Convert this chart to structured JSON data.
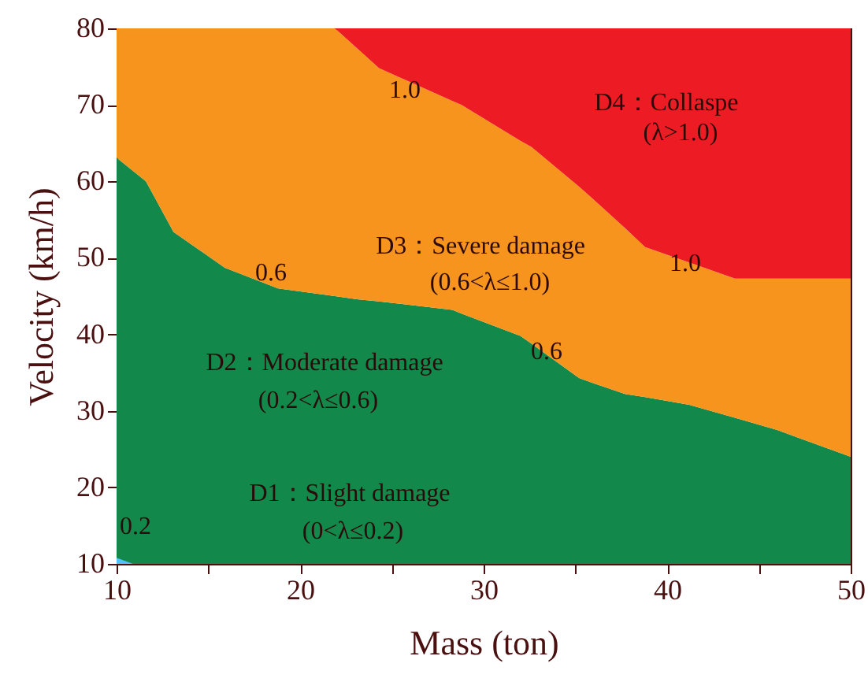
{
  "chart_data": {
    "type": "area",
    "xlabel": "Mass (ton)",
    "ylabel": "Velocity (km/h)",
    "xlim": [
      10,
      50
    ],
    "ylim": [
      10,
      80
    ],
    "xticks": [
      10,
      {
        "value": 15,
        "label": null
      },
      20,
      {
        "value": 25,
        "label": null
      },
      30,
      {
        "value": 35,
        "label": null
      },
      40,
      {
        "value": 45,
        "label": null
      },
      50
    ],
    "yticks": [
      10,
      20,
      30,
      40,
      50,
      60,
      70,
      80
    ],
    "grid": false,
    "x": [
      10,
      11.6,
      13.1,
      15.9,
      18.8,
      21.9,
      23.1,
      24.3,
      28.3,
      28.8,
      32,
      32.6,
      35.2,
      36,
      37.7,
      38.8,
      41.2,
      43.7,
      46,
      50
    ],
    "series": [
      {
        "color": "#12884a",
        "values": [
          63.1,
          60,
          53.4,
          48.7,
          46,
          45,
          44.6,
          44.3,
          43.2,
          42.7,
          39.8,
          38.8,
          34.3,
          33.6,
          32.2,
          31.8,
          30.8,
          29.1,
          27.5,
          24
        ]
      },
      {
        "color": "#f7941d",
        "values": [
          80,
          80,
          80,
          80,
          80,
          80,
          77.4,
          74.8,
          70.5,
          70,
          65.3,
          64.5,
          59.3,
          57.6,
          53.9,
          51.4,
          49.4,
          47.3,
          47.3,
          47.3
        ]
      },
      {
        "color": "#ed1c24",
        "values": [
          80,
          80,
          80,
          80,
          80,
          80,
          80,
          80,
          80,
          80,
          80,
          80,
          80,
          80,
          80,
          80,
          80,
          80,
          80,
          80
        ]
      },
      {
        "color": "#4fc3f7",
        "x": [
          10,
          10.9
        ],
        "values": [
          10.8,
          10
        ]
      }
    ],
    "annotations": [
      "D4：Collaspe",
      "(λ>1.0)",
      "D3：Severe damage",
      "(0.6<λ≤1.0)",
      "D2：Moderate damage",
      "(0.2<λ≤0.6)",
      "D1：Slight damage",
      "(0<λ≤0.2)",
      "0.2",
      "1.0",
      "1.0",
      "0.6",
      "0.6"
    ]
  }
}
